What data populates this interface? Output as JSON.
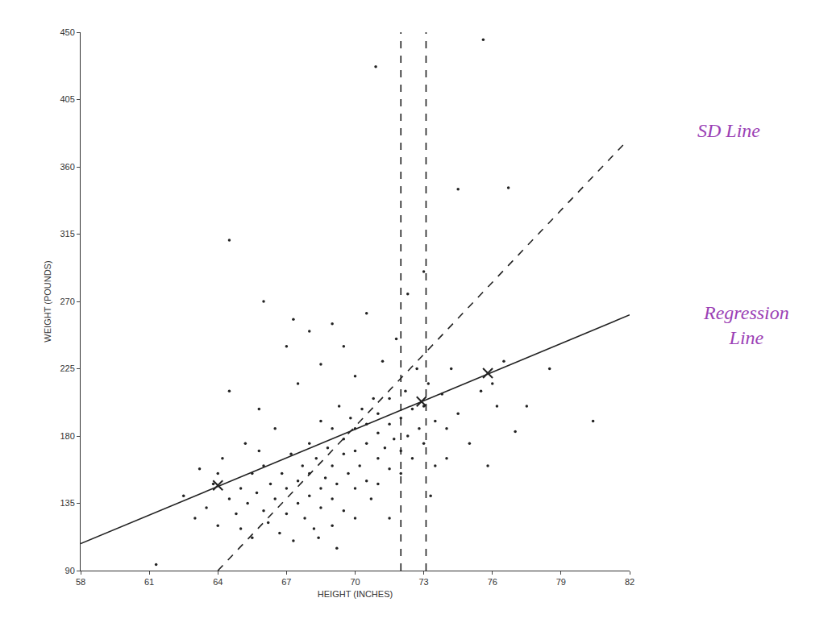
{
  "chart_data": {
    "type": "scatter",
    "x_label": "HEIGHT (INCHES)",
    "y_label": "WEIGHT (POUNDS)",
    "xlim": [
      58,
      82
    ],
    "ylim": [
      90,
      450
    ],
    "xticks": [
      58,
      61,
      64,
      67,
      70,
      73,
      76,
      79,
      82
    ],
    "yticks": [
      90,
      135,
      180,
      225,
      270,
      315,
      360,
      405,
      450
    ],
    "grid": false,
    "annotations": [
      {
        "text": "SD Line",
        "color": "#9b3fb5"
      },
      {
        "text": "Regression Line",
        "color": "#9b3fb5"
      }
    ],
    "series": [
      {
        "type": "scatter",
        "color": "#222222",
        "marker": "dot",
        "x": [
          61.3,
          62.5,
          63.0,
          63.2,
          63.5,
          63.8,
          64.0,
          64.2,
          64.5,
          64.5,
          64.8,
          65.0,
          65.0,
          65.2,
          65.3,
          65.5,
          65.5,
          65.7,
          65.8,
          66.0,
          66.0,
          66.2,
          66.3,
          66.5,
          66.5,
          66.7,
          66.8,
          67.0,
          67.0,
          67.0,
          67.2,
          67.3,
          67.5,
          67.5,
          67.5,
          67.7,
          67.8,
          68.0,
          68.0,
          68.0,
          68.0,
          68.2,
          68.3,
          68.5,
          68.5,
          68.5,
          68.5,
          68.7,
          68.8,
          69.0,
          69.0,
          69.0,
          69.0,
          69.0,
          69.2,
          69.3,
          69.5,
          69.5,
          69.5,
          69.5,
          69.7,
          69.8,
          70.0,
          70.0,
          70.0,
          70.0,
          70.0,
          70.2,
          70.3,
          70.5,
          70.5,
          70.5,
          70.5,
          70.7,
          70.8,
          71.0,
          71.0,
          71.0,
          71.0,
          71.2,
          71.3,
          71.5,
          71.5,
          71.5,
          71.7,
          71.8,
          72.0,
          72.0,
          72.0,
          72.2,
          72.3,
          72.5,
          72.5,
          72.7,
          72.8,
          73.0,
          73.0,
          73.2,
          73.5,
          73.5,
          73.8,
          74.0,
          74.2,
          74.5,
          75.0,
          75.5,
          75.8,
          76.0,
          76.2,
          76.5,
          77.0,
          77.5,
          78.5,
          80.4,
          64.5,
          70.9,
          75.6,
          76.7,
          66.0,
          67.3,
          68.4,
          72.3,
          73.0,
          74.5,
          64.0,
          65.8,
          69.2,
          71.5,
          73.3,
          74.0
        ],
        "values": [
          94,
          140,
          125,
          158,
          132,
          148,
          120,
          165,
          138,
          210,
          128,
          145,
          118,
          175,
          135,
          155,
          112,
          142,
          198,
          130,
          160,
          122,
          148,
          138,
          185,
          115,
          155,
          128,
          145,
          240,
          168,
          110,
          150,
          135,
          215,
          160,
          125,
          140,
          175,
          155,
          250,
          118,
          165,
          145,
          132,
          190,
          228,
          152,
          172,
          138,
          160,
          185,
          120,
          255,
          148,
          200,
          168,
          130,
          178,
          240,
          155,
          192,
          145,
          170,
          185,
          125,
          220,
          160,
          198,
          150,
          175,
          188,
          262,
          138,
          205,
          165,
          182,
          195,
          148,
          230,
          172,
          188,
          158,
          205,
          178,
          245,
          170,
          192,
          155,
          210,
          180,
          198,
          165,
          225,
          185,
          200,
          175,
          215,
          190,
          160,
          208,
          185,
          225,
          195,
          175,
          210,
          160,
          215,
          200,
          230,
          183,
          200,
          225,
          190,
          311,
          427,
          445,
          346,
          270,
          258,
          112,
          275,
          290,
          345,
          155,
          170,
          105,
          125,
          140,
          165
        ]
      },
      {
        "type": "line",
        "color": "#222222",
        "line_style": "solid",
        "x": [
          58,
          82
        ],
        "values": [
          108,
          261
        ]
      },
      {
        "type": "line",
        "color": "#222222",
        "line_style": "dashed",
        "x": [
          64,
          81.8
        ],
        "values": [
          90,
          376
        ]
      },
      {
        "type": "line",
        "color": "#222222",
        "line_style": "dashed",
        "x": [
          72.0,
          72.0
        ],
        "values": [
          90,
          450
        ]
      },
      {
        "type": "line",
        "color": "#222222",
        "line_style": "dashed",
        "x": [
          73.1,
          73.1
        ],
        "values": [
          90,
          450
        ]
      },
      {
        "type": "scatter",
        "color": "#222222",
        "marker": "x",
        "x": [
          64.0,
          72.9,
          75.8
        ],
        "values": [
          147,
          203,
          222
        ]
      }
    ]
  }
}
